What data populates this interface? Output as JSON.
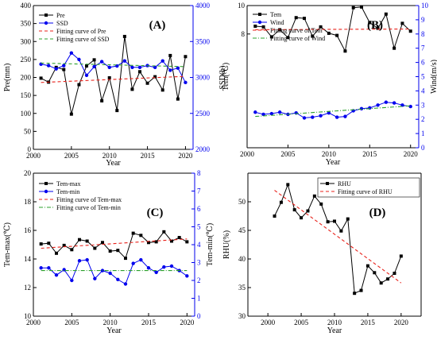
{
  "chart_data": [
    {
      "panel": "(A)",
      "type": "line",
      "xlabel": "Year",
      "ylabel_left": "Pre(mm)",
      "ylabel_right": "SSD(h)",
      "xlim": [
        2000,
        2021
      ],
      "ylim_left": [
        0,
        400
      ],
      "ylim_right": [
        2000,
        4000
      ],
      "xticks": [
        2000,
        2005,
        2010,
        2015,
        2020
      ],
      "xtick_labels": [
        "2000",
        "2005",
        "2010",
        "2015",
        "2020"
      ],
      "yticks_left": [
        0,
        50,
        100,
        150,
        200,
        250,
        300,
        350,
        400
      ],
      "ytick_labels_left": [
        "0",
        "50",
        "100",
        "150",
        "200",
        "250",
        "300",
        "350",
        "400"
      ],
      "yticks_right": [
        2000,
        2500,
        3000,
        3500,
        4000
      ],
      "ytick_labels_right": [
        "2000",
        "2500",
        "3000",
        "3500",
        "4000"
      ],
      "right_axis_color": "#0000ee",
      "legend_position": "top-left",
      "x": [
        2001,
        2002,
        2003,
        2004,
        2005,
        2006,
        2007,
        2008,
        2009,
        2010,
        2011,
        2012,
        2013,
        2014,
        2015,
        2016,
        2017,
        2018,
        2019,
        2020
      ],
      "series": [
        {
          "name": "Pre",
          "axis": "left",
          "style": "line-marker",
          "marker": "square",
          "color": "#000000",
          "values": [
            198,
            187,
            228,
            222,
            98,
            180,
            232,
            249,
            135,
            199,
            108,
            314,
            167,
            216,
            184,
            202,
            165,
            261,
            140,
            258
          ]
        },
        {
          "name": "SSD",
          "axis": "right",
          "style": "line-marker",
          "marker": "circle",
          "color": "#0000ee",
          "values": [
            3185,
            3165,
            3120,
            3165,
            3340,
            3250,
            3030,
            3150,
            3220,
            3140,
            3160,
            3230,
            3140,
            3140,
            3165,
            3140,
            3230,
            3100,
            3130,
            2930
          ]
        },
        {
          "name": "Fitting curve of Pre",
          "axis": "left",
          "style": "dash",
          "color": "#e8211a",
          "values": [
            186,
            203
          ],
          "x": [
            2001,
            2020
          ]
        },
        {
          "name": "Fitting curve of SSD",
          "axis": "right",
          "style": "dash",
          "color": "#2ca02c",
          "values": [
            3200,
            3150
          ],
          "x": [
            2001,
            2020
          ]
        }
      ]
    },
    {
      "panel": "(B)",
      "type": "line",
      "xlabel": "Year",
      "ylabel_left": "Tem(℃)",
      "ylabel_right": "Wind(m/s)",
      "xlim": [
        2000,
        2021
      ],
      "ylim_left": [
        0,
        10
      ],
      "ylim_right": [
        0,
        10
      ],
      "xticks": [
        2000,
        2005,
        2010,
        2015,
        2020
      ],
      "xtick_labels": [
        "2000",
        "2005",
        "2010",
        "2015",
        "2020"
      ],
      "yticks_left": [
        8,
        10
      ],
      "ytick_labels_left": [
        "8",
        "10"
      ],
      "yticks_right": [
        0,
        1,
        2,
        3,
        4,
        5,
        6,
        7,
        8,
        9,
        10
      ],
      "ytick_labels_right": [
        "0",
        "1",
        "2",
        "3",
        "4",
        "5",
        "6",
        "7",
        "8",
        "9",
        "10"
      ],
      "right_axis_color": "#0000ee",
      "legend_position": "top-left",
      "x": [
        2001,
        2002,
        2003,
        2004,
        2005,
        2006,
        2007,
        2008,
        2009,
        2010,
        2011,
        2012,
        2013,
        2014,
        2015,
        2016,
        2017,
        2018,
        2019,
        2020
      ],
      "series": [
        {
          "name": "Tem",
          "axis": "left",
          "style": "line-marker",
          "marker": "square",
          "color": "#000000",
          "values": [
            8.55,
            8.5,
            7.8,
            8.3,
            7.75,
            9.15,
            9.1,
            7.85,
            8.5,
            8.05,
            7.9,
            6.8,
            9.85,
            9.9,
            8.8,
            8.4,
            9.4,
            7.0,
            8.75,
            8.2
          ]
        },
        {
          "name": "Wind",
          "axis": "right",
          "style": "line-marker",
          "marker": "circle",
          "color": "#0000ee",
          "values": [
            2.5,
            2.35,
            2.4,
            2.5,
            2.35,
            2.45,
            2.1,
            2.15,
            2.25,
            2.45,
            2.15,
            2.2,
            2.6,
            2.75,
            2.8,
            3.0,
            3.2,
            3.15,
            3.0,
            2.9
          ]
        },
        {
          "name": "Fitting curve of Tem",
          "axis": "left",
          "style": "dash",
          "color": "#e8211a",
          "values": [
            8.3,
            8.35
          ],
          "x": [
            2001,
            2020
          ]
        },
        {
          "name": "Fitting curve of Wind",
          "axis": "right",
          "style": "dash-dot",
          "color": "#2ca02c",
          "values": [
            2.2,
            2.95
          ],
          "x": [
            2001,
            2020
          ]
        }
      ]
    },
    {
      "panel": "(C)",
      "type": "line",
      "xlabel": "Year",
      "ylabel_left": "Tem-max(℃)",
      "ylabel_right": "Tem-min(℃)",
      "xlim": [
        2000,
        2021
      ],
      "ylim_left": [
        10,
        20
      ],
      "ylim_right": [
        0,
        8
      ],
      "xticks": [
        2000,
        2005,
        2010,
        2015,
        2020
      ],
      "xtick_labels": [
        "2000",
        "2005",
        "2010",
        "2015",
        "2020"
      ],
      "yticks_left": [
        10,
        12,
        14,
        16,
        18,
        20
      ],
      "ytick_labels_left": [
        "10",
        "12",
        "14",
        "16",
        "18",
        "20"
      ],
      "yticks_right": [
        0,
        1,
        2,
        3,
        4,
        5,
        6,
        7,
        8
      ],
      "ytick_labels_right": [
        "0",
        "1",
        "2",
        "3",
        "4",
        "5",
        "6",
        "7",
        "8"
      ],
      "right_axis_color": "#0000ee",
      "legend_position": "top-left",
      "x": [
        2001,
        2002,
        2003,
        2004,
        2005,
        2006,
        2007,
        2008,
        2009,
        2010,
        2011,
        2012,
        2013,
        2014,
        2015,
        2016,
        2017,
        2018,
        2019,
        2020
      ],
      "series": [
        {
          "name": "Tem-max",
          "axis": "left",
          "style": "line-marker",
          "marker": "square",
          "color": "#000000",
          "values": [
            15.05,
            15.1,
            14.4,
            14.95,
            14.65,
            15.35,
            15.25,
            14.75,
            15.15,
            14.55,
            14.6,
            14.05,
            15.8,
            15.65,
            15.15,
            15.2,
            15.9,
            15.25,
            15.5,
            15.2
          ]
        },
        {
          "name": "Tem-min",
          "axis": "right",
          "style": "line-marker",
          "marker": "circle",
          "color": "#0000ee",
          "values": [
            2.7,
            2.7,
            2.3,
            2.6,
            2.0,
            3.1,
            3.15,
            2.1,
            2.55,
            2.4,
            2.05,
            1.8,
            2.95,
            3.15,
            2.7,
            2.45,
            2.75,
            2.8,
            2.55,
            2.25
          ]
        },
        {
          "name": "Fitting curve of Tem-max",
          "axis": "left",
          "style": "dash",
          "color": "#e8211a",
          "values": [
            14.75,
            15.4
          ],
          "x": [
            2001,
            2020
          ]
        },
        {
          "name": "Fitting curve of Tem-min",
          "axis": "right",
          "style": "dash-dot",
          "color": "#2ca02c",
          "values": [
            2.55,
            2.55
          ],
          "x": [
            2001,
            2020
          ]
        }
      ]
    },
    {
      "panel": "(D)",
      "type": "line",
      "xlabel": "Year",
      "ylabel_left": "RHU(%)",
      "xlim": [
        1997,
        2023
      ],
      "ylim_left": [
        30,
        55
      ],
      "xticks": [
        2000,
        2005,
        2010,
        2015,
        2020
      ],
      "xtick_labels": [
        "2000",
        "2005",
        "2010",
        "2015",
        "2020"
      ],
      "yticks_left": [
        30,
        35,
        40,
        45,
        50
      ],
      "ytick_labels_left": [
        "30",
        "35",
        "40",
        "45",
        "50"
      ],
      "legend_position": "top-right",
      "x": [
        2001,
        2002,
        2003,
        2004,
        2005,
        2006,
        2007,
        2008,
        2009,
        2010,
        2011,
        2012,
        2013,
        2014,
        2015,
        2016,
        2017,
        2018,
        2019,
        2020
      ],
      "series": [
        {
          "name": "RHU",
          "axis": "left",
          "style": "line-marker",
          "marker": "square",
          "color": "#000000",
          "values": [
            47.5,
            49.9,
            53.0,
            48.6,
            47.2,
            48.4,
            51.0,
            49.6,
            46.5,
            46.6,
            44.9,
            47.0,
            34.0,
            34.5,
            38.8,
            37.6,
            35.8,
            36.5,
            37.5,
            40.5
          ]
        },
        {
          "name": "Fitting curve of RHU",
          "axis": "left",
          "style": "dash",
          "color": "#e8211a",
          "values": [
            52.0,
            35.8
          ],
          "x": [
            2001,
            2020
          ]
        }
      ]
    }
  ]
}
